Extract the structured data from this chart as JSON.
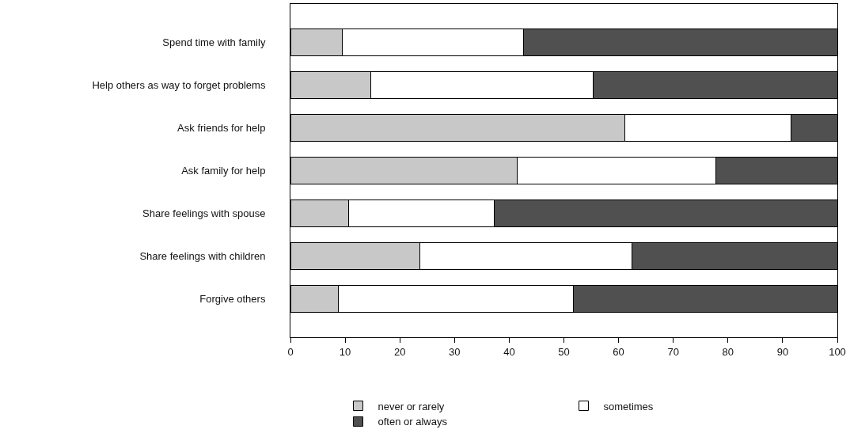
{
  "chart_data": {
    "type": "bar",
    "orientation": "horizontal",
    "stacked": true,
    "categories": [
      "Spend time with family",
      "Help others as way to forget problems",
      "Ask friends for help",
      "Ask family for help",
      "Share feelings with spouse",
      "Share feelings with children",
      "Forgive others"
    ],
    "series": [
      {
        "name": "never or rarely",
        "color": "#c8c8c8",
        "values": [
          9.5,
          14.7,
          61.2,
          41.5,
          10.7,
          23.6,
          8.8
        ]
      },
      {
        "name": "sometimes",
        "color": "#ffffff",
        "values": [
          33.1,
          40.6,
          30.3,
          36.3,
          26.6,
          38.9,
          42.9
        ]
      },
      {
        "name": "often or always",
        "color": "#505050",
        "values": [
          57.4,
          44.7,
          8.5,
          22.2,
          62.7,
          37.5,
          48.3
        ]
      }
    ],
    "xlim": [
      0,
      100
    ],
    "xticks": [
      0,
      10,
      20,
      30,
      40,
      50,
      60,
      70,
      80,
      90,
      100
    ],
    "grid": false,
    "legend": "bottom"
  }
}
